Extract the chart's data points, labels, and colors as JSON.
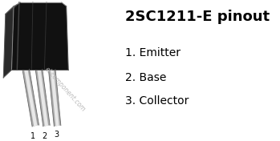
{
  "title": "2SC1211-E pinout",
  "title_fontsize": 13,
  "pins": [
    {
      "number": "1",
      "name": "Emitter"
    },
    {
      "number": "2",
      "name": "Base"
    },
    {
      "number": "3",
      "name": "Collector"
    }
  ],
  "pin_label_fontsize": 10,
  "watermark": "el-component.com",
  "bg_color": "#ffffff",
  "text_color": "#000000",
  "body_color": "#111111",
  "highlight_color": "#555555",
  "pin_light": "#e8e8e8",
  "pin_mid": "#aaaaaa",
  "pin_dark": "#666666",
  "watermark_color": "#bbbbbb"
}
